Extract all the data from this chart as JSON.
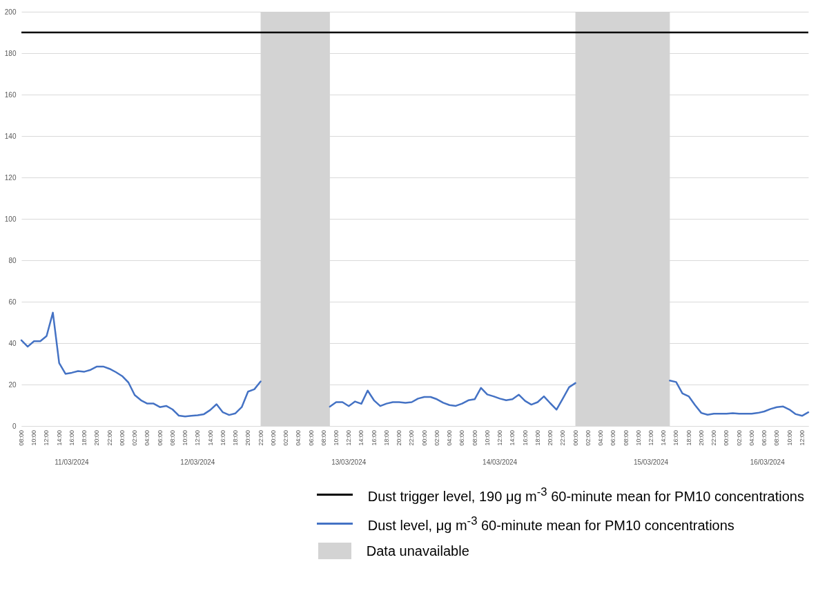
{
  "chart_data": {
    "type": "line",
    "x": [
      "2024-03-11T08:00",
      "2024-03-11T09:00",
      "2024-03-11T10:00",
      "2024-03-11T11:00",
      "2024-03-11T12:00",
      "2024-03-11T13:00",
      "2024-03-11T14:00",
      "2024-03-11T15:00",
      "2024-03-11T16:00",
      "2024-03-11T17:00",
      "2024-03-11T18:00",
      "2024-03-11T19:00",
      "2024-03-11T20:00",
      "2024-03-11T21:00",
      "2024-03-11T22:00",
      "2024-03-11T23:00",
      "2024-03-12T00:00",
      "2024-03-12T01:00",
      "2024-03-12T02:00",
      "2024-03-12T03:00",
      "2024-03-12T04:00",
      "2024-03-12T05:00",
      "2024-03-12T06:00",
      "2024-03-12T07:00",
      "2024-03-12T08:00",
      "2024-03-12T09:00",
      "2024-03-12T10:00",
      "2024-03-12T11:00",
      "2024-03-12T12:00",
      "2024-03-12T13:00",
      "2024-03-12T14:00",
      "2024-03-12T15:00",
      "2024-03-12T16:00",
      "2024-03-12T17:00",
      "2024-03-12T18:00",
      "2024-03-12T19:00",
      "2024-03-12T20:00",
      "2024-03-12T21:00",
      "2024-03-12T22:00",
      "2024-03-13T03:00",
      "2024-03-13T09:00",
      "2024-03-13T10:00",
      "2024-03-13T11:00",
      "2024-03-13T12:00",
      "2024-03-13T13:00",
      "2024-03-13T14:00",
      "2024-03-13T15:00",
      "2024-03-13T16:00",
      "2024-03-13T17:00",
      "2024-03-13T18:00",
      "2024-03-13T19:00",
      "2024-03-13T20:00",
      "2024-03-13T21:00",
      "2024-03-13T22:00",
      "2024-03-13T23:00",
      "2024-03-14T00:00",
      "2024-03-14T01:00",
      "2024-03-14T02:00",
      "2024-03-14T03:00",
      "2024-03-14T04:00",
      "2024-03-14T05:00",
      "2024-03-14T06:00",
      "2024-03-14T07:00",
      "2024-03-14T08:00",
      "2024-03-14T09:00",
      "2024-03-14T10:00",
      "2024-03-14T11:00",
      "2024-03-14T12:00",
      "2024-03-14T13:00",
      "2024-03-14T14:00",
      "2024-03-14T15:00",
      "2024-03-14T16:00",
      "2024-03-14T17:00",
      "2024-03-14T18:00",
      "2024-03-14T19:00",
      "2024-03-14T20:00",
      "2024-03-14T21:00",
      "2024-03-14T22:00",
      "2024-03-14T23:00",
      "2024-03-15T00:00",
      "2024-03-15T07:00",
      "2024-03-15T15:00",
      "2024-03-15T16:00",
      "2024-03-15T17:00",
      "2024-03-15T18:00",
      "2024-03-15T19:00",
      "2024-03-15T20:00",
      "2024-03-15T21:00",
      "2024-03-15T22:00",
      "2024-03-15T23:00",
      "2024-03-16T00:00",
      "2024-03-16T01:00",
      "2024-03-16T02:00",
      "2024-03-16T03:00",
      "2024-03-16T04:00",
      "2024-03-16T05:00",
      "2024-03-16T06:00",
      "2024-03-16T07:00",
      "2024-03-16T08:00",
      "2024-03-16T09:00",
      "2024-03-16T10:00",
      "2024-03-16T11:00",
      "2024-03-16T12:00",
      "2024-03-16T13:00"
    ],
    "series": [
      {
        "name": "Dust level, μg m$^{-3}$ 60-minute mean for PM10 concentrations",
        "color": "#4472c4",
        "values": [
          41.4,
          38.3,
          40.9,
          40.9,
          43.4,
          54.7,
          30.4,
          25.2,
          25.7,
          26.5,
          26.2,
          27.1,
          28.7,
          28.7,
          27.6,
          26,
          24.1,
          21,
          14.9,
          12.4,
          10.8,
          10.8,
          9.1,
          9.7,
          8,
          5,
          4.6,
          4.9,
          5.2,
          5.7,
          7.7,
          10.5,
          6.6,
          5.3,
          6.1,
          9.1,
          16.6,
          17.7,
          21.5,
          null,
          9.3,
          11.5,
          11.5,
          9.6,
          11.8,
          10.7,
          17.1,
          12.4,
          9.6,
          10.8,
          11.5,
          11.5,
          11.2,
          11.5,
          13.2,
          14,
          14,
          12.9,
          11.2,
          10.1,
          9.7,
          10.8,
          12.4,
          12.9,
          18.4,
          15.2,
          14.3,
          13.2,
          12.4,
          12.9,
          15.1,
          12.1,
          10.3,
          11.5,
          14.3,
          11,
          7.9,
          13.2,
          18.7,
          20.7,
          null,
          21.9,
          21.2,
          15.7,
          14.3,
          10.1,
          6.3,
          5.4,
          5.9,
          5.9,
          5.9,
          6.2,
          5.9,
          5.9,
          5.9,
          6.3,
          7,
          8.2,
          9.1,
          9.4,
          7.9,
          5.7,
          4.9,
          6.6
        ]
      }
    ],
    "xlim": [
      "2024-03-11T08:00",
      "2024-03-16T13:00"
    ],
    "xticks": [
      {
        "value": "2024-03-11T08:00",
        "label": "08:00"
      },
      {
        "value": "2024-03-11T10:00",
        "label": "10:00"
      },
      {
        "value": "2024-03-11T12:00",
        "label": "12:00"
      },
      {
        "value": "2024-03-11T14:00",
        "label": "14:00"
      },
      {
        "value": "2024-03-11T16:00",
        "label": "16:00"
      },
      {
        "value": "2024-03-11T18:00",
        "label": "18:00"
      },
      {
        "value": "2024-03-11T20:00",
        "label": "20:00"
      },
      {
        "value": "2024-03-11T22:00",
        "label": "22:00"
      },
      {
        "value": "2024-03-12T00:00",
        "label": "00:00"
      },
      {
        "value": "2024-03-12T02:00",
        "label": "02:00"
      },
      {
        "value": "2024-03-12T04:00",
        "label": "04:00"
      },
      {
        "value": "2024-03-12T06:00",
        "label": "06:00"
      },
      {
        "value": "2024-03-12T08:00",
        "label": "08:00"
      },
      {
        "value": "2024-03-12T10:00",
        "label": "10:00"
      },
      {
        "value": "2024-03-12T12:00",
        "label": "12:00"
      },
      {
        "value": "2024-03-12T14:00",
        "label": "14:00"
      },
      {
        "value": "2024-03-12T16:00",
        "label": "16:00"
      },
      {
        "value": "2024-03-12T18:00",
        "label": "18:00"
      },
      {
        "value": "2024-03-12T20:00",
        "label": "20:00"
      },
      {
        "value": "2024-03-12T22:00",
        "label": "22:00"
      },
      {
        "value": "2024-03-13T00:00",
        "label": "00:00"
      },
      {
        "value": "2024-03-13T02:00",
        "label": "02:00"
      },
      {
        "value": "2024-03-13T04:00",
        "label": "04:00"
      },
      {
        "value": "2024-03-13T06:00",
        "label": "06:00"
      },
      {
        "value": "2024-03-13T08:00",
        "label": "08:00"
      },
      {
        "value": "2024-03-13T10:00",
        "label": "10:00"
      },
      {
        "value": "2024-03-13T12:00",
        "label": "12:00"
      },
      {
        "value": "2024-03-13T14:00",
        "label": "14:00"
      },
      {
        "value": "2024-03-13T16:00",
        "label": "16:00"
      },
      {
        "value": "2024-03-13T18:00",
        "label": "18:00"
      },
      {
        "value": "2024-03-13T20:00",
        "label": "20:00"
      },
      {
        "value": "2024-03-13T22:00",
        "label": "22:00"
      },
      {
        "value": "2024-03-14T00:00",
        "label": "00:00"
      },
      {
        "value": "2024-03-14T02:00",
        "label": "02:00"
      },
      {
        "value": "2024-03-14T04:00",
        "label": "04:00"
      },
      {
        "value": "2024-03-14T06:00",
        "label": "06:00"
      },
      {
        "value": "2024-03-14T08:00",
        "label": "08:00"
      },
      {
        "value": "2024-03-14T10:00",
        "label": "10:00"
      },
      {
        "value": "2024-03-14T12:00",
        "label": "12:00"
      },
      {
        "value": "2024-03-14T14:00",
        "label": "14:00"
      },
      {
        "value": "2024-03-14T16:00",
        "label": "16:00"
      },
      {
        "value": "2024-03-14T18:00",
        "label": "18:00"
      },
      {
        "value": "2024-03-14T20:00",
        "label": "20:00"
      },
      {
        "value": "2024-03-14T22:00",
        "label": "22:00"
      },
      {
        "value": "2024-03-15T00:00",
        "label": "00:00"
      },
      {
        "value": "2024-03-15T02:00",
        "label": "02:00"
      },
      {
        "value": "2024-03-15T04:00",
        "label": "04:00"
      },
      {
        "value": "2024-03-15T06:00",
        "label": "06:00"
      },
      {
        "value": "2024-03-15T08:00",
        "label": "08:00"
      },
      {
        "value": "2024-03-15T10:00",
        "label": "10:00"
      },
      {
        "value": "2024-03-15T12:00",
        "label": "12:00"
      },
      {
        "value": "2024-03-15T14:00",
        "label": "14:00"
      },
      {
        "value": "2024-03-15T16:00",
        "label": "16:00"
      },
      {
        "value": "2024-03-15T18:00",
        "label": "18:00"
      },
      {
        "value": "2024-03-15T20:00",
        "label": "20:00"
      },
      {
        "value": "2024-03-15T22:00",
        "label": "22:00"
      },
      {
        "value": "2024-03-16T00:00",
        "label": "00:00"
      },
      {
        "value": "2024-03-16T02:00",
        "label": "02:00"
      },
      {
        "value": "2024-03-16T04:00",
        "label": "04:00"
      },
      {
        "value": "2024-03-16T06:00",
        "label": "06:00"
      },
      {
        "value": "2024-03-16T08:00",
        "label": "08:00"
      },
      {
        "value": "2024-03-16T10:00",
        "label": "10:00"
      },
      {
        "value": "2024-03-16T12:00",
        "label": "12:00"
      }
    ],
    "ylim": [
      0,
      200
    ],
    "yticks": [
      0,
      20,
      40,
      60,
      80,
      100,
      120,
      140,
      160,
      180,
      200
    ],
    "grid": "y",
    "legend": "bottom",
    "ref_lines": [
      {
        "axis": "y",
        "value": 190,
        "label": "Dust trigger level, 190 μg m$^{-3}$ 60-minute mean for PM10 concentrations",
        "color": "#000000"
      }
    ],
    "bands": [
      {
        "axis": "x",
        "from": "2024-03-12T22:00",
        "to": "2024-03-13T09:00",
        "label": "Data unavailable",
        "color": "#d3d3d3"
      },
      {
        "axis": "x",
        "from": "2024-03-15T00:00",
        "to": "2024-03-15T15:00",
        "color": "#d3d3d3"
      }
    ],
    "annotations": [
      "11/03/2024",
      "12/03/2024",
      "13/03/2024",
      "14/03/2024",
      "15/03/2024",
      "16/03/2024"
    ]
  }
}
